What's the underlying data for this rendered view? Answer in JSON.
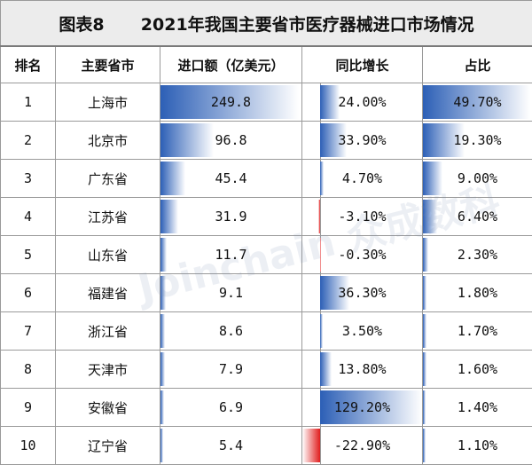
{
  "table": {
    "title_label": "图表8",
    "title": "2021年我国主要省市医疗器械进口市场情况",
    "headers": [
      "排名",
      "主要省市",
      "进口额（亿美元）",
      "同比增长",
      "占比"
    ],
    "rows": [
      {
        "rank": "1",
        "region": "上海市",
        "import": "249.8",
        "import_v": 249.8,
        "growth": "24.00%",
        "growth_v": 24.0,
        "share": "49.70%",
        "share_v": 49.7
      },
      {
        "rank": "2",
        "region": "北京市",
        "import": "96.8",
        "import_v": 96.8,
        "growth": "33.90%",
        "growth_v": 33.9,
        "share": "19.30%",
        "share_v": 19.3
      },
      {
        "rank": "3",
        "region": "广东省",
        "import": "45.4",
        "import_v": 45.4,
        "growth": "4.70%",
        "growth_v": 4.7,
        "share": "9.00%",
        "share_v": 9.0
      },
      {
        "rank": "4",
        "region": "江苏省",
        "import": "31.9",
        "import_v": 31.9,
        "growth": "-3.10%",
        "growth_v": -3.1,
        "share": "6.40%",
        "share_v": 6.4
      },
      {
        "rank": "5",
        "region": "山东省",
        "import": "11.7",
        "import_v": 11.7,
        "growth": "-0.30%",
        "growth_v": -0.3,
        "share": "2.30%",
        "share_v": 2.3
      },
      {
        "rank": "6",
        "region": "福建省",
        "import": "9.1",
        "import_v": 9.1,
        "growth": "36.30%",
        "growth_v": 36.3,
        "share": "1.80%",
        "share_v": 1.8
      },
      {
        "rank": "7",
        "region": "浙江省",
        "import": "8.6",
        "import_v": 8.6,
        "growth": "3.50%",
        "growth_v": 3.5,
        "share": "1.70%",
        "share_v": 1.7
      },
      {
        "rank": "8",
        "region": "天津市",
        "import": "7.9",
        "import_v": 7.9,
        "growth": "13.80%",
        "growth_v": 13.8,
        "share": "1.60%",
        "share_v": 1.6
      },
      {
        "rank": "9",
        "region": "安徽省",
        "import": "6.9",
        "import_v": 6.9,
        "growth": "129.20%",
        "growth_v": 129.2,
        "share": "1.40%",
        "share_v": 1.4
      },
      {
        "rank": "10",
        "region": "辽宁省",
        "import": "5.4",
        "import_v": 5.4,
        "growth": "-22.90%",
        "growth_v": -22.9,
        "share": "1.10%",
        "share_v": 1.1
      }
    ]
  },
  "watermark": "Joinchain 众成数科",
  "colors": {
    "positive_bar": "#2c5fb6",
    "negative_bar": "#e01e1e"
  }
}
